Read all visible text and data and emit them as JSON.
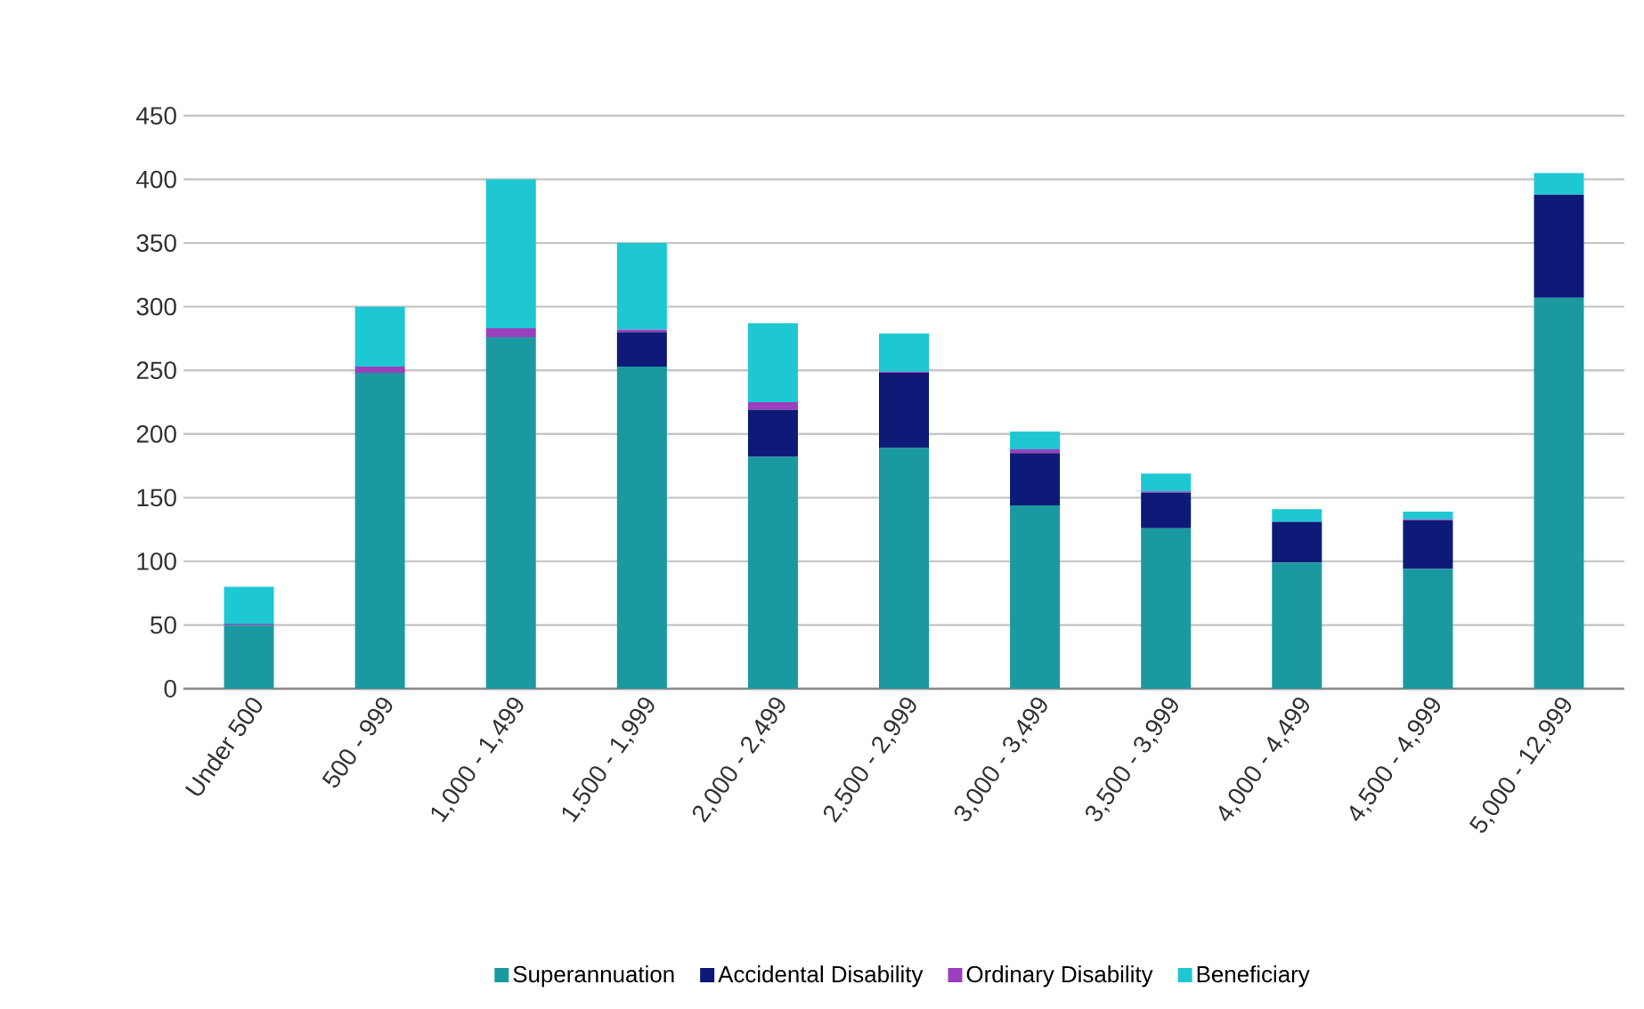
{
  "chart_data": {
    "type": "bar",
    "stacked": true,
    "categories": [
      "Under 500",
      "500 - 999",
      "1,000 - 1,499",
      "1,500 - 1,999",
      "2,000 - 2,499",
      "2,500 - 2,999",
      "3,000 - 3,499",
      "3,500 - 3,999",
      "4,000 - 4,499",
      "4,500 - 4,999",
      "5,000 - 12,999"
    ],
    "series": [
      {
        "name": "Superannuation",
        "color": "#1a9aa0",
        "values": [
          50,
          248,
          276,
          253,
          182,
          189,
          144,
          126,
          99,
          94,
          307
        ]
      },
      {
        "name": "Accidental Disability",
        "color": "#0d1a78",
        "values": [
          0,
          0,
          0,
          27,
          37,
          59,
          41,
          28,
          32,
          38,
          81
        ]
      },
      {
        "name": "Ordinary Disability",
        "color": "#9b3fbf",
        "values": [
          1,
          5,
          7,
          2,
          6,
          1,
          3,
          1,
          0,
          1,
          0
        ]
      },
      {
        "name": "Beneficiary",
        "color": "#1ec8d2",
        "values": [
          29,
          47,
          117,
          68,
          62,
          30,
          14,
          14,
          10,
          6,
          17
        ]
      }
    ],
    "ylim": [
      0,
      450
    ],
    "yticks": [
      0,
      50,
      100,
      150,
      200,
      250,
      300,
      350,
      400,
      450
    ],
    "grid": "y",
    "legend": "bottom"
  }
}
